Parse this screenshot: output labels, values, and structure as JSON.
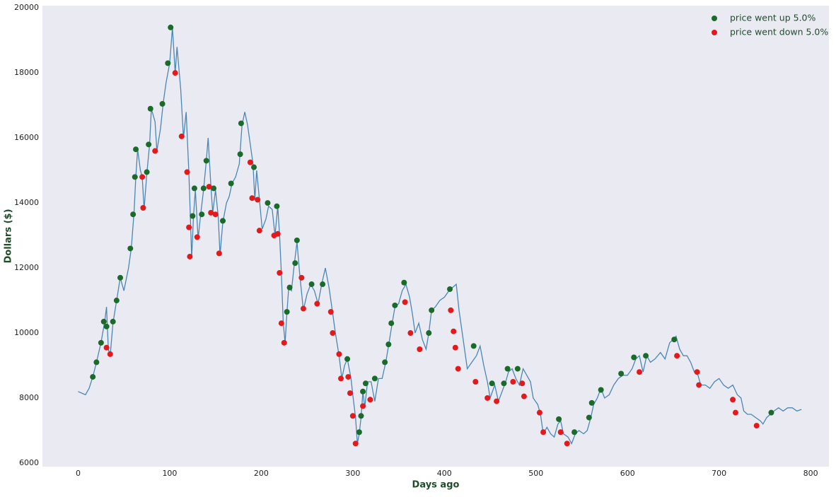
{
  "chart_data": {
    "type": "line",
    "xlabel": "Days ago",
    "ylabel": "Dollars ($)",
    "xlim": [
      -39,
      820
    ],
    "ylim": [
      5890,
      20070
    ],
    "xticks": [
      0,
      100,
      200,
      300,
      400,
      500,
      600,
      700,
      800
    ],
    "yticks": [
      6000,
      8000,
      10000,
      12000,
      14000,
      16000,
      18000,
      20000
    ],
    "grid": false,
    "legend": "upper right",
    "series": [
      {
        "type": "line",
        "color": "#4a87b5",
        "x": [
          0,
          8,
          12,
          16,
          20,
          25,
          29,
          31,
          33,
          35,
          38,
          42,
          46,
          50,
          55,
          58,
          61,
          63,
          65,
          68,
          70,
          72,
          75,
          78,
          80,
          84,
          86,
          90,
          93,
          96,
          100,
          103,
          106,
          108,
          112,
          115,
          118,
          121,
          123,
          124,
          126,
          128,
          131,
          134,
          137,
          140,
          142,
          145,
          147,
          150,
          153,
          155,
          158,
          162,
          165,
          168,
          172,
          176,
          179,
          182,
          185,
          188,
          191,
          193,
          195,
          198,
          201,
          205,
          208,
          212,
          215,
          218,
          220,
          222,
          224,
          226,
          228,
          230,
          233,
          236,
          239,
          242,
          246,
          250,
          254,
          258,
          262,
          266,
          270,
          274,
          278,
          281,
          285,
          288,
          291,
          294,
          298,
          300,
          303,
          305,
          307,
          309,
          311,
          313,
          316,
          320,
          324,
          328,
          332,
          336,
          339,
          343,
          346,
          350,
          354,
          358,
          362,
          365,
          368,
          372,
          376,
          380,
          383,
          386,
          390,
          395,
          400,
          405,
          409,
          413,
          416,
          419,
          422,
          425,
          430,
          435,
          439,
          443,
          447,
          450,
          455,
          459,
          463,
          467,
          470,
          474,
          478,
          482,
          486,
          490,
          494,
          497,
          502,
          505,
          508,
          512,
          516,
          520,
          524,
          527,
          530,
          535,
          539,
          543,
          547,
          552,
          556,
          560,
          563,
          567,
          571,
          575,
          580,
          585,
          590,
          595,
          600,
          605,
          609,
          613,
          617,
          621,
          625,
          630,
          636,
          641,
          646,
          650,
          653,
          657,
          661,
          665,
          669,
          673,
          677,
          680,
          685,
          690,
          695,
          700,
          705,
          710,
          715,
          720,
          724,
          727,
          731,
          735,
          740,
          745,
          748,
          752,
          756,
          760,
          765,
          770,
          775,
          780,
          785,
          790
        ],
        "values": [
          8200,
          8100,
          8300,
          8650,
          9100,
          9700,
          10350,
          10800,
          9500,
          9300,
          10300,
          11000,
          11700,
          11300,
          12000,
          12600,
          13700,
          14800,
          15650,
          15000,
          14800,
          13800,
          14900,
          15800,
          16900,
          16500,
          15600,
          16300,
          17100,
          17700,
          18300,
          19400,
          18000,
          18800,
          17500,
          16000,
          16800,
          14900,
          13200,
          12300,
          13600,
          14400,
          12900,
          13700,
          14400,
          15300,
          16000,
          14500,
          13700,
          14400,
          13600,
          12400,
          13400,
          14000,
          14200,
          14600,
          14800,
          15200,
          16400,
          16800,
          16400,
          15800,
          15200,
          14100,
          15000,
          14100,
          13200,
          13500,
          13900,
          13800,
          13000,
          13900,
          13000,
          11800,
          10300,
          9700,
          10600,
          11400,
          11300,
          12100,
          12800,
          11800,
          10700,
          11200,
          11500,
          11300,
          10900,
          11500,
          12000,
          11400,
          10600,
          10000,
          9300,
          8600,
          9000,
          9200,
          8600,
          8100,
          7400,
          6600,
          6900,
          7400,
          8200,
          7700,
          8500,
          8500,
          7900,
          8600,
          8600,
          9100,
          9600,
          10300,
          10800,
          10900,
          11300,
          11500,
          11100,
          10600,
          10000,
          10300,
          9800,
          9500,
          10000,
          10700,
          10800,
          11000,
          11100,
          11300,
          11400,
          11500,
          10700,
          10100,
          9500,
          8900,
          9100,
          9300,
          9600,
          9000,
          8500,
          8000,
          8400,
          7900,
          8200,
          8500,
          8800,
          8900,
          8600,
          8400,
          8900,
          8700,
          8500,
          8000,
          7800,
          7500,
          6900,
          7100,
          6900,
          6800,
          7200,
          7300,
          6900,
          6800,
          6600,
          6900,
          7000,
          6900,
          7000,
          7400,
          7800,
          8000,
          8300,
          8000,
          8100,
          8400,
          8600,
          8700,
          8700,
          8900,
          9200,
          9300,
          8800,
          9300,
          9100,
          9200,
          9400,
          9200,
          9700,
          9800,
          9900,
          9500,
          9300,
          9300,
          9100,
          8800,
          8700,
          8400,
          8400,
          8300,
          8500,
          8600,
          8400,
          8300,
          8400,
          8100,
          8000,
          7600,
          7500,
          7500,
          7400,
          7300,
          7200,
          7400,
          7500,
          7600,
          7700,
          7600,
          7700,
          7700,
          7600,
          7650
        ]
      },
      {
        "type": "scatter",
        "name": "price went up 5.0%",
        "color": "#1a6b2a",
        "x": [
          16,
          20,
          25,
          28,
          31,
          38,
          42,
          46,
          57,
          60,
          62,
          63,
          75,
          77,
          79,
          92,
          98,
          101,
          125,
          127,
          135,
          137,
          140,
          148,
          158,
          167,
          177,
          178,
          192,
          207,
          217,
          228,
          231,
          237,
          239,
          255,
          267,
          294,
          307,
          309,
          311,
          314,
          324,
          335,
          339,
          342,
          346,
          356,
          383,
          386,
          406,
          432,
          452,
          465,
          469,
          480,
          525,
          542,
          558,
          561,
          571,
          593,
          607,
          620,
          651,
          757
        ],
        "values": [
          8650,
          9100,
          9700,
          10350,
          10200,
          10350,
          11000,
          11700,
          12600,
          13650,
          14800,
          15650,
          14950,
          15800,
          16900,
          17050,
          18300,
          19400,
          13600,
          14450,
          13650,
          14450,
          15300,
          14450,
          13450,
          14600,
          15500,
          16450,
          15100,
          14000,
          13900,
          10650,
          11400,
          12150,
          12850,
          11500,
          11500,
          9200,
          6950,
          7450,
          8200,
          8450,
          8600,
          9100,
          9650,
          10300,
          10850,
          11550,
          10000,
          10700,
          11350,
          9600,
          8450,
          8450,
          8900,
          8900,
          7350,
          6950,
          7400,
          7850,
          8250,
          8750,
          9250,
          9300,
          9800,
          7550
        ]
      },
      {
        "type": "scatter",
        "name": "price went down 5.0%",
        "color": "#e31a1c",
        "x": [
          31,
          35,
          70,
          71,
          84,
          106,
          113,
          119,
          121,
          122,
          130,
          143,
          145,
          150,
          154,
          188,
          190,
          196,
          198,
          214,
          218,
          220,
          222,
          225,
          244,
          246,
          261,
          276,
          278,
          285,
          287,
          295,
          297,
          300,
          303,
          311,
          319,
          357,
          363,
          373,
          407,
          410,
          412,
          415,
          434,
          447,
          457,
          475,
          485,
          487,
          504,
          508,
          527,
          534,
          613,
          654,
          676,
          678,
          715,
          718,
          741
        ],
        "values": [
          9550,
          9350,
          14800,
          13850,
          15600,
          18000,
          16050,
          14950,
          13250,
          12350,
          12950,
          14500,
          13700,
          13650,
          12450,
          15250,
          14150,
          14100,
          13150,
          13000,
          13050,
          11850,
          10300,
          9700,
          11700,
          10750,
          10900,
          10650,
          10000,
          9350,
          8600,
          8650,
          8150,
          7450,
          6600,
          7750,
          7950,
          10950,
          10000,
          9500,
          10700,
          10050,
          9550,
          8900,
          8500,
          8000,
          7900,
          8500,
          8450,
          8050,
          7550,
          6950,
          6950,
          6600,
          8800,
          9300,
          8800,
          8400,
          7950,
          7550,
          7150
        ]
      }
    ]
  }
}
